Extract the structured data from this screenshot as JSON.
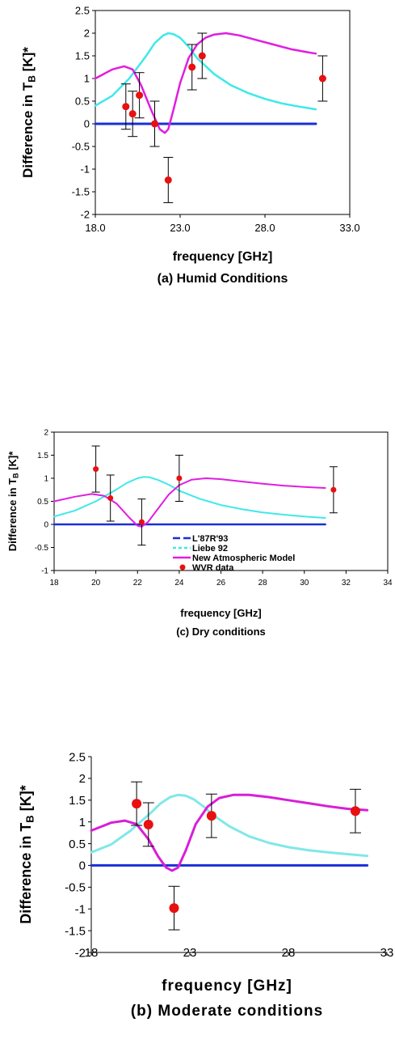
{
  "chart_data": [
    {
      "type": "line",
      "caption": "(a) Humid Conditions",
      "xlabel": "frequency  [GHz]",
      "ylabel_main": "Difference in T",
      "ylabel_sub": "B",
      "ylabel_tail": " [K]*",
      "xlim": [
        18,
        33
      ],
      "ylim": [
        -2,
        2.5
      ],
      "xticks": [
        18,
        23,
        28,
        33
      ],
      "xtick_labels": [
        "18.0",
        "23.0",
        "28.0",
        "33.0"
      ],
      "yticks": [
        -2,
        -1.5,
        -1,
        -0.5,
        0,
        0.5,
        1,
        1.5,
        2,
        2.5
      ],
      "ytick_labels": [
        "-2",
        "-1.5",
        "-1",
        "-0.5",
        "0",
        "0.5",
        "1",
        "1.5",
        "2",
        "2.5"
      ],
      "colors": {
        "lrr": "#1a2fd6",
        "liebe": "#40e8e8",
        "nam": "#e01ee0",
        "wvr": "#e81010"
      },
      "series": [
        {
          "key": "lrr",
          "x": [
            18,
            31
          ],
          "y": [
            0,
            0
          ]
        },
        {
          "key": "liebe",
          "x": [
            18,
            19,
            20,
            21,
            21.5,
            22,
            22.3,
            22.6,
            23,
            23.5,
            24,
            25,
            26,
            27,
            28,
            29,
            30,
            31
          ],
          "y": [
            0.4,
            0.62,
            1.0,
            1.5,
            1.78,
            1.95,
            2.0,
            1.98,
            1.9,
            1.7,
            1.45,
            1.1,
            0.85,
            0.68,
            0.55,
            0.45,
            0.38,
            0.32
          ]
        },
        {
          "key": "nam",
          "x": [
            18,
            19,
            19.7,
            20.2,
            20.7,
            21.3,
            21.8,
            22.1,
            22.3,
            22.6,
            23,
            23.5,
            24,
            24.5,
            25,
            25.7,
            26.5,
            27.5,
            28.5,
            29.5,
            30.5,
            31
          ],
          "y": [
            1.0,
            1.2,
            1.27,
            1.2,
            0.85,
            0.3,
            -0.12,
            -0.2,
            -0.12,
            0.3,
            0.9,
            1.45,
            1.75,
            1.9,
            1.97,
            2.0,
            1.95,
            1.85,
            1.75,
            1.65,
            1.58,
            1.55
          ]
        }
      ],
      "wvr": {
        "x": [
          19.8,
          20.2,
          20.6,
          21.5,
          22.3,
          23.7,
          24.3,
          31.4
        ],
        "y": [
          0.38,
          0.22,
          0.63,
          0.0,
          -1.24,
          1.25,
          1.5,
          1.0
        ],
        "err": 0.5
      }
    },
    {
      "type": "line",
      "caption": "(c) Dry conditions",
      "xlabel": "frequency  [GHz]",
      "ylabel_main": "Difference in T",
      "ylabel_sub": "B",
      "ylabel_tail": " [K]*",
      "xlim": [
        18,
        34
      ],
      "ylim": [
        -1,
        2
      ],
      "xticks": [
        18,
        20,
        22,
        24,
        26,
        28,
        30,
        32,
        34
      ],
      "xtick_labels": [
        "18",
        "20",
        "22",
        "24",
        "26",
        "28",
        "30",
        "32",
        "34"
      ],
      "yticks": [
        -1,
        -0.5,
        0,
        0.5,
        1,
        1.5,
        2
      ],
      "ytick_labels": [
        "-1",
        "-0.5",
        "0",
        "0.5",
        "1",
        "1.5",
        "2"
      ],
      "colors": {
        "lrr": "#1a2fd6",
        "liebe": "#40e8e8",
        "nam": "#e01ee0",
        "wvr": "#e81010"
      },
      "legend": [
        {
          "key": "lrr",
          "label": "L'87R'93"
        },
        {
          "key": "liebe",
          "label": "Liebe 92"
        },
        {
          "key": "nam",
          "label": "New Atmospheric Model"
        },
        {
          "key": "wvr",
          "label": "WVR data"
        }
      ],
      "series": [
        {
          "key": "lrr",
          "x": [
            18,
            31
          ],
          "y": [
            0,
            0
          ]
        },
        {
          "key": "liebe",
          "x": [
            18,
            19,
            20,
            21,
            21.5,
            22,
            22.3,
            22.6,
            23,
            23.5,
            24,
            25,
            26,
            27,
            28,
            29,
            30,
            31
          ],
          "y": [
            0.17,
            0.3,
            0.5,
            0.76,
            0.9,
            1.0,
            1.03,
            1.02,
            0.96,
            0.86,
            0.73,
            0.55,
            0.42,
            0.33,
            0.26,
            0.21,
            0.17,
            0.14
          ]
        },
        {
          "key": "nam",
          "x": [
            18,
            19,
            19.8,
            20.4,
            21,
            21.6,
            22,
            22.2,
            22.5,
            23,
            23.5,
            24,
            24.6,
            25.3,
            26,
            27,
            28,
            29,
            30,
            31
          ],
          "y": [
            0.5,
            0.6,
            0.66,
            0.62,
            0.45,
            0.15,
            -0.03,
            -0.05,
            0.05,
            0.35,
            0.65,
            0.85,
            0.97,
            1.0,
            0.98,
            0.93,
            0.88,
            0.84,
            0.81,
            0.79
          ]
        }
      ],
      "wvr": {
        "x": [
          20.0,
          20.7,
          22.2,
          24.0,
          31.4
        ],
        "y": [
          1.2,
          0.57,
          0.05,
          1.0,
          0.75
        ],
        "err": 0.5
      }
    },
    {
      "type": "line",
      "caption": "(b) Moderate conditions",
      "xlabel": "frequency  [GHz]",
      "ylabel_main": "Difference in T",
      "ylabel_sub": "B",
      "ylabel_tail": " [K]*",
      "xlim": [
        18,
        33
      ],
      "ylim": [
        -2,
        2.5
      ],
      "xticks": [
        18,
        23,
        28,
        33
      ],
      "xtick_labels": [
        "18",
        "23",
        "28",
        "33"
      ],
      "yticks": [
        -2,
        -1.5,
        -1,
        -0.5,
        0,
        0.5,
        1,
        1.5,
        2,
        2.5
      ],
      "ytick_labels": [
        "-2",
        "-1.5",
        "-1",
        "-0.5",
        "0",
        "0.5",
        "1",
        "1.5",
        "2",
        "2.5"
      ],
      "colors": {
        "lrr": "#1a2fd6",
        "liebe": "#80e8e8",
        "nam": "#d81ed8",
        "wvr": "#e81010"
      },
      "series": [
        {
          "key": "lrr",
          "x": [
            18,
            32
          ],
          "y": [
            0,
            0
          ]
        },
        {
          "key": "liebe",
          "x": [
            18,
            19,
            20,
            21,
            21.5,
            22,
            22.4,
            22.8,
            23.2,
            23.7,
            24.2,
            25,
            26,
            27,
            28,
            29,
            30,
            31,
            32
          ],
          "y": [
            0.3,
            0.48,
            0.8,
            1.2,
            1.42,
            1.57,
            1.62,
            1.6,
            1.52,
            1.35,
            1.15,
            0.9,
            0.67,
            0.52,
            0.42,
            0.35,
            0.3,
            0.26,
            0.22
          ]
        },
        {
          "key": "nam",
          "x": [
            18,
            19,
            19.7,
            20.3,
            20.9,
            21.4,
            21.8,
            22.1,
            22.4,
            22.8,
            23.3,
            23.9,
            24.5,
            25.2,
            26,
            27,
            28,
            29,
            30,
            31,
            32
          ],
          "y": [
            0.8,
            0.98,
            1.03,
            0.95,
            0.6,
            0.2,
            -0.05,
            -0.12,
            -0.05,
            0.35,
            0.95,
            1.35,
            1.55,
            1.62,
            1.62,
            1.57,
            1.5,
            1.43,
            1.36,
            1.3,
            1.27
          ]
        }
      ],
      "wvr": {
        "x": [
          20.3,
          20.9,
          22.2,
          24.1,
          31.4
        ],
        "y": [
          1.42,
          0.94,
          -0.98,
          1.14,
          1.25
        ],
        "err": 0.5
      }
    }
  ]
}
